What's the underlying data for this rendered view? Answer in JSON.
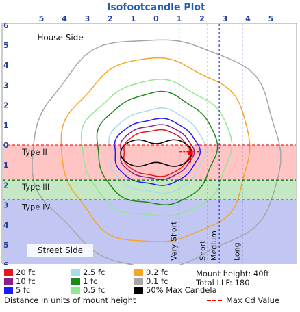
{
  "chart_data": {
    "type": "contour",
    "title": "Isofootcandle Plot",
    "x_ticks": [
      "5",
      "4",
      "3",
      "2",
      "1",
      "0",
      "1",
      "2",
      "3",
      "4",
      "5"
    ],
    "y_ticks": [
      "6",
      "5",
      "4",
      "3",
      "2",
      "1",
      "0",
      "1",
      "2",
      "3",
      "4",
      "5",
      "6"
    ],
    "xlim": [
      -5.5,
      5.5
    ],
    "ylim_house_to_street": [
      -6,
      6
    ],
    "zones": [
      {
        "name": "Type II",
        "y_from": 0,
        "y_to": 1.75,
        "color": "#ffc0c0"
      },
      {
        "name": "Type III",
        "y_from": 1.75,
        "y_to": 2.75,
        "color": "#bfe6bf"
      },
      {
        "name": "Type IV",
        "y_from": 2.75,
        "y_to": 6,
        "color": "#bcc1f2"
      }
    ],
    "zone_boundaries": [
      {
        "y": 0,
        "color": "#ff2020"
      },
      {
        "y": 1.75,
        "color": "#006400"
      },
      {
        "y": 2.75,
        "color": "#0000cc"
      }
    ],
    "ranges": [
      {
        "name": "Very Short",
        "x": 1
      },
      {
        "name": "Short",
        "x": 2.25
      },
      {
        "name": "Medium",
        "x": 2.75
      },
      {
        "name": "Long",
        "x": 3.75
      }
    ],
    "area_labels": {
      "house": "House Side",
      "street": "Street Side"
    },
    "max_cd_point": {
      "x": 1.5,
      "y": 0.4
    },
    "isolines": [
      {
        "fc": "20",
        "color": "#e8161a"
      },
      {
        "fc": "10",
        "color": "#8a1f8a"
      },
      {
        "fc": "5",
        "color": "#1a1aff"
      },
      {
        "fc": "2.5",
        "color": "#a8dcea"
      },
      {
        "fc": "1",
        "color": "#1a8a1a"
      },
      {
        "fc": "0.5",
        "color": "#90e890"
      },
      {
        "fc": "0.2",
        "color": "#f5a623"
      },
      {
        "fc": "0.1",
        "color": "#a6a6a6"
      },
      {
        "fc": "50% Max Candela",
        "color": "#000000"
      }
    ],
    "contours": [
      {
        "fc": "0.1",
        "cx": 0.05,
        "cy": 0.35,
        "rx": 5.4,
        "ry": 5.7
      },
      {
        "fc": "0.2",
        "cx": 0,
        "cy": 0.3,
        "rx": 4.1,
        "ry": 4.6
      },
      {
        "fc": "0.5",
        "cx": 0,
        "cy": 0.2,
        "rx": 3.25,
        "ry": 3.4
      },
      {
        "fc": "1",
        "cx": 0,
        "cy": 0.2,
        "rx": 2.6,
        "ry": 2.8
      },
      {
        "fc": "2.5",
        "cx": 0,
        "cy": 0.3,
        "rx": 2.1,
        "ry": 2.1
      },
      {
        "fc": "5",
        "cx": 0,
        "cy": 0.35,
        "rx": 1.85,
        "ry": 1.65
      },
      {
        "fc": "10",
        "cx": 0,
        "cy": 0.35,
        "rx": 1.6,
        "ry": 1.35
      },
      {
        "fc": "20",
        "cx": 0,
        "cy": 0.4,
        "rx": 1.45,
        "ry": 1.15
      }
    ],
    "max_candela_contour": {
      "cx": 0,
      "cy": 0.4,
      "rx": 1.55,
      "ry": 0.85,
      "waist": 0.55
    }
  },
  "legend": {
    "mount_height": "Mount height: 40ft",
    "total_llf": "Total LLF: 180",
    "distance_note": "Distance in units of mount height",
    "max_cd_value": "Max Cd Value"
  }
}
